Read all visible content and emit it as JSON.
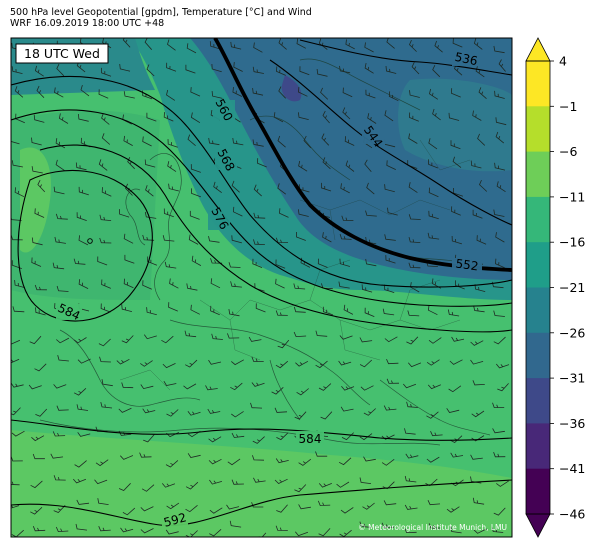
{
  "header": {
    "title_line1": "500 hPa level Geopotential [gpdm], Temperature [°C] and Wind",
    "title_line2": "WRF 16.09.2019 18:00 UTC +48"
  },
  "map": {
    "time_badge": "18 UTC Wed",
    "copyright": "© Meteorological Institute Munich, LMU",
    "contour_labels": [
      "536",
      "544",
      "552",
      "560",
      "568",
      "576",
      "584",
      "584",
      "592"
    ]
  },
  "colorbar": {
    "tick_labels": [
      "4",
      "−1",
      "−6",
      "−11",
      "−16",
      "−21",
      "−26",
      "−31",
      "−36",
      "−41",
      "−46"
    ],
    "colors": [
      "#fde725",
      "#b5de2b",
      "#6ece58",
      "#35b779",
      "#1f9e89",
      "#26828e",
      "#31688e",
      "#3e4989",
      "#482878",
      "#440154"
    ]
  },
  "palette": {
    "warm_green": "#5cc863",
    "mid_green": "#3bb673",
    "teal": "#26948a",
    "blue": "#2f6b8e",
    "deep_blue": "#3a4f8c"
  }
}
